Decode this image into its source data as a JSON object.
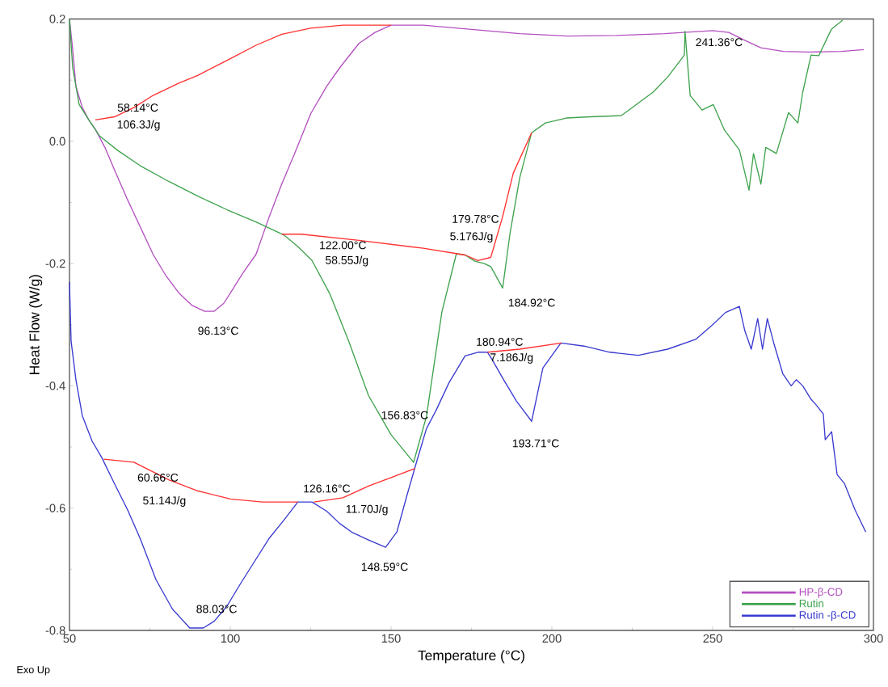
{
  "chart_data": {
    "type": "line",
    "xlabel": "Temperature (°C)",
    "ylabel": "Heat Flow (W/g)",
    "xlim": [
      50,
      300
    ],
    "ylim": [
      -0.8,
      0.2
    ],
    "xticks": [
      50,
      100,
      150,
      200,
      250,
      300
    ],
    "yticks": [
      {
        "value": -0.8,
        "label": "-0.8"
      },
      {
        "value": -0.6,
        "label": "-0.6"
      },
      {
        "value": -0.4,
        "label": "-0.4"
      },
      {
        "value": -0.2,
        "label": "-0.2"
      },
      {
        "value": 0,
        "label": "0.0"
      },
      {
        "value": 0.2,
        "label": "0.2"
      }
    ],
    "legend": "bottom right",
    "series": [
      {
        "name": "HP-β-CD",
        "color": "#b44fc0",
        "x": [
          50,
          51,
          52,
          54,
          56,
          58,
          61,
          64,
          68,
          72,
          76,
          80,
          84,
          88,
          92,
          95,
          98,
          101,
          104,
          108,
          112,
          116,
          120,
          125,
          130,
          134,
          140,
          145,
          150,
          160,
          175,
          190,
          205,
          220,
          235,
          241,
          250,
          255,
          260,
          265,
          272,
          280,
          290,
          297
        ],
        "values": [
          0.2,
          0.15,
          0.09,
          0.055,
          0.035,
          0.02,
          -0.01,
          -0.047,
          -0.095,
          -0.14,
          -0.185,
          -0.22,
          -0.248,
          -0.268,
          -0.278,
          -0.278,
          -0.265,
          -0.24,
          -0.215,
          -0.185,
          -0.125,
          -0.07,
          -0.02,
          0.045,
          0.09,
          0.12,
          0.16,
          0.178,
          0.19,
          0.19,
          0.183,
          0.176,
          0.172,
          0.173,
          0.176,
          0.178,
          0.181,
          0.178,
          0.165,
          0.153,
          0.147,
          0.146,
          0.147,
          0.15
        ]
      },
      {
        "name": "Rutin",
        "color": "#3fa34d",
        "x": [
          50,
          51,
          53,
          56,
          59.3,
          65,
          72,
          81,
          90,
          99,
          108,
          116.6,
          121,
          125.4,
          131,
          136.7,
          143,
          150,
          157,
          161,
          165.8,
          170.3,
          173,
          176,
          179,
          181,
          184.7,
          187,
          190,
          193.7,
          198,
          204.5,
          212,
          221.6,
          231.4,
          236,
          241.2,
          241.4,
          243,
          246.7,
          250.2,
          253.7,
          258.3,
          261.3,
          262.7,
          265,
          266.5,
          269.8,
          273.6,
          276.5,
          278,
          280.6,
          283,
          286.9,
          290.4
        ],
        "values": [
          0.2,
          0.12,
          0.06,
          0.035,
          0.009,
          -0.015,
          -0.04,
          -0.066,
          -0.09,
          -0.112,
          -0.132,
          -0.153,
          -0.172,
          -0.195,
          -0.25,
          -0.325,
          -0.416,
          -0.48,
          -0.525,
          -0.45,
          -0.279,
          -0.184,
          -0.186,
          -0.196,
          -0.2,
          -0.205,
          -0.24,
          -0.15,
          -0.06,
          0.014,
          0.03,
          0.038,
          0.04,
          0.042,
          0.08,
          0.105,
          0.141,
          0.18,
          0.075,
          0.051,
          0.06,
          0.018,
          -0.014,
          -0.08,
          -0.02,
          -0.07,
          -0.01,
          -0.02,
          0.047,
          0.03,
          0.08,
          0.141,
          0.14,
          0.183,
          0.198
        ]
      },
      {
        "name": "Rutin -β-CD",
        "color": "#3a3ad0",
        "x": [
          50,
          50.5,
          52,
          54,
          57,
          60,
          64,
          68,
          72,
          76.9,
          82,
          87.4,
          91.6,
          95,
          99,
          103,
          107.8,
          112,
          116.6,
          121,
          125.4,
          130,
          134,
          138,
          143,
          148.3,
          151.8,
          155,
          158,
          161,
          164,
          168,
          173,
          177,
          180,
          181.3,
          185,
          189,
          193.7,
          197.2,
          202.8,
          210,
          218,
          226.9,
          236,
          244.7,
          250,
          254,
          258.3,
          260,
          262,
          264,
          265.5,
          267,
          269,
          271.8,
          274.4,
          276,
          278,
          280.6,
          282,
          284.4,
          285,
          287,
          288.7,
          291,
          294.2,
          297.6
        ],
        "values": [
          -0.23,
          -0.327,
          -0.39,
          -0.449,
          -0.49,
          -0.517,
          -0.56,
          -0.602,
          -0.65,
          -0.717,
          -0.765,
          -0.796,
          -0.796,
          -0.785,
          -0.76,
          -0.725,
          -0.685,
          -0.65,
          -0.62,
          -0.59,
          -0.59,
          -0.605,
          -0.625,
          -0.64,
          -0.652,
          -0.664,
          -0.639,
          -0.578,
          -0.523,
          -0.47,
          -0.44,
          -0.395,
          -0.351,
          -0.345,
          -0.345,
          -0.356,
          -0.39,
          -0.425,
          -0.458,
          -0.371,
          -0.33,
          -0.335,
          -0.345,
          -0.35,
          -0.34,
          -0.324,
          -0.3,
          -0.28,
          -0.27,
          -0.31,
          -0.34,
          -0.29,
          -0.34,
          -0.29,
          -0.33,
          -0.38,
          -0.4,
          -0.39,
          -0.4,
          -0.422,
          -0.43,
          -0.446,
          -0.488,
          -0.475,
          -0.545,
          -0.56,
          -0.602,
          -0.639
        ]
      },
      {
        "color": "#ff3030",
        "x": [
          58,
          64,
          70,
          76,
          84,
          90,
          100,
          108,
          116,
          125,
          135,
          150,
          null,
          116,
          122,
          140,
          160,
          173,
          177,
          181,
          null,
          181,
          184.7,
          188,
          193.7,
          null,
          60.66,
          70,
          81,
          90,
          100,
          110,
          121,
          null,
          126,
          135,
          143,
          150,
          157.5,
          null,
          180,
          190,
          203
        ],
        "values": [
          0.035,
          0.04,
          0.055,
          0.075,
          0.095,
          0.108,
          0.135,
          0.157,
          0.175,
          0.185,
          0.19,
          0.19,
          null,
          -0.152,
          -0.152,
          -0.162,
          -0.175,
          -0.186,
          -0.195,
          -0.19,
          null,
          -0.19,
          -0.123,
          -0.052,
          0.014,
          null,
          -0.52,
          -0.525,
          -0.554,
          -0.572,
          -0.585,
          -0.59,
          -0.59,
          null,
          -0.59,
          -0.583,
          -0.564,
          -0.55,
          -0.535,
          null,
          -0.345,
          -0.34,
          -0.33
        ]
      }
    ],
    "annotations": [
      "58.14°C",
      "106.3J/g",
      "96.13°C",
      "122.00°C",
      "58.55J/g",
      "179.78°C",
      "5.176J/g",
      "184.92°C",
      "241.36°C",
      "156.83°C",
      "60.66°C",
      "51.14J/g",
      "126.16°C",
      "11.70J/g",
      "148.59°C",
      "88.03°C",
      "180.94°C",
      "7.186J/g",
      "193.71°C",
      "Exo Up"
    ]
  }
}
